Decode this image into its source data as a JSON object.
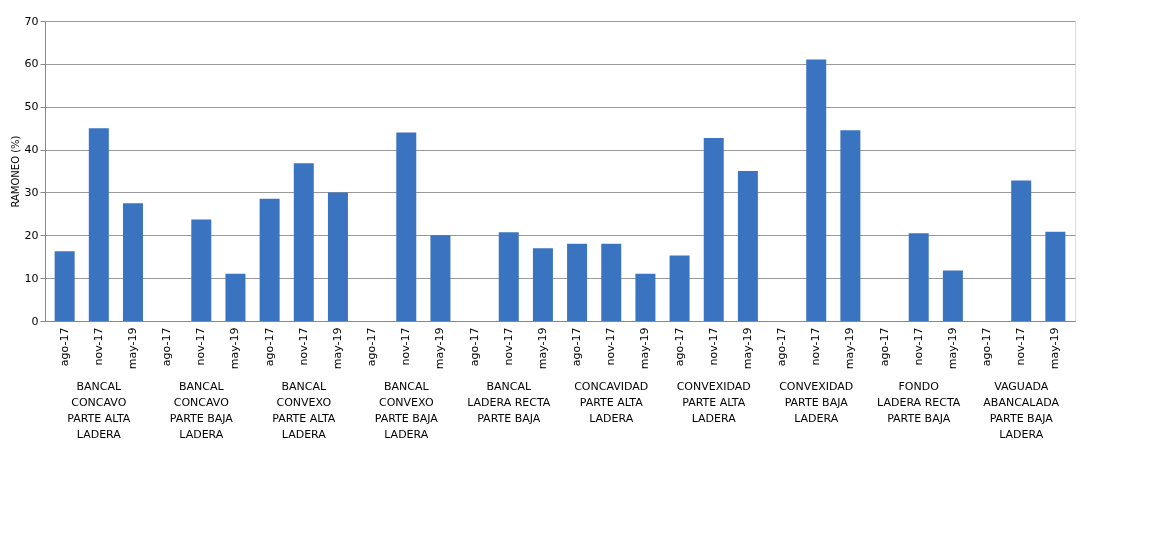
{
  "chart_data": {
    "type": "bar",
    "ylabel": "RAMONEO (%)",
    "categories": [
      "ago-17",
      "nov-17",
      "may-19",
      "ago-17",
      "nov-17",
      "may-19",
      "ago-17",
      "nov-17",
      "may-19",
      "ago-17",
      "nov-17",
      "may-19",
      "ago-17",
      "nov-17",
      "may-19",
      "ago-17",
      "nov-17",
      "may-19",
      "ago-17",
      "nov-17",
      "may-19",
      "ago-17",
      "nov-17",
      "may-19",
      "ago-17",
      "nov-17",
      "may-19",
      "ago-17",
      "nov-17",
      "may-19"
    ],
    "values": [
      16.3,
      45,
      27.5,
      null,
      23.7,
      11,
      28.5,
      36.8,
      30,
      null,
      44,
      20,
      null,
      20.7,
      17,
      18,
      18,
      11,
      15.3,
      42.7,
      35,
      null,
      61,
      44.5,
      null,
      20.5,
      11.8,
      null,
      32.8,
      20.8
    ],
    "color": "#3a73bf",
    "ylim": [
      0,
      70
    ],
    "yticks": [
      0,
      10,
      20,
      30,
      40,
      50,
      60,
      70
    ],
    "grid": "y",
    "annotations": [
      "BANCAL\nCONCAVO\nPARTE ALTA\nLADERA",
      "BANCAL\nCONCAVO\nPARTE BAJA\nLADERA",
      "BANCAL\nCONVEXO\nPARTE ALTA\nLADERA",
      "BANCAL\nCONVEXO\nPARTE BAJA\nLADERA",
      "BANCAL\nLADERA RECTA\nPARTE BAJA",
      "CONCAVIDAD\nPARTE ALTA\nLADERA",
      "CONVEXIDAD\nPARTE ALTA\nLADERA",
      "CONVEXIDAD\nPARTE BAJA\nLADERA",
      "FONDO\nLADERA RECTA\nPARTE BAJA",
      "VAGUADA\nABANCALADA\nPARTE BAJA\nLADERA"
    ]
  }
}
